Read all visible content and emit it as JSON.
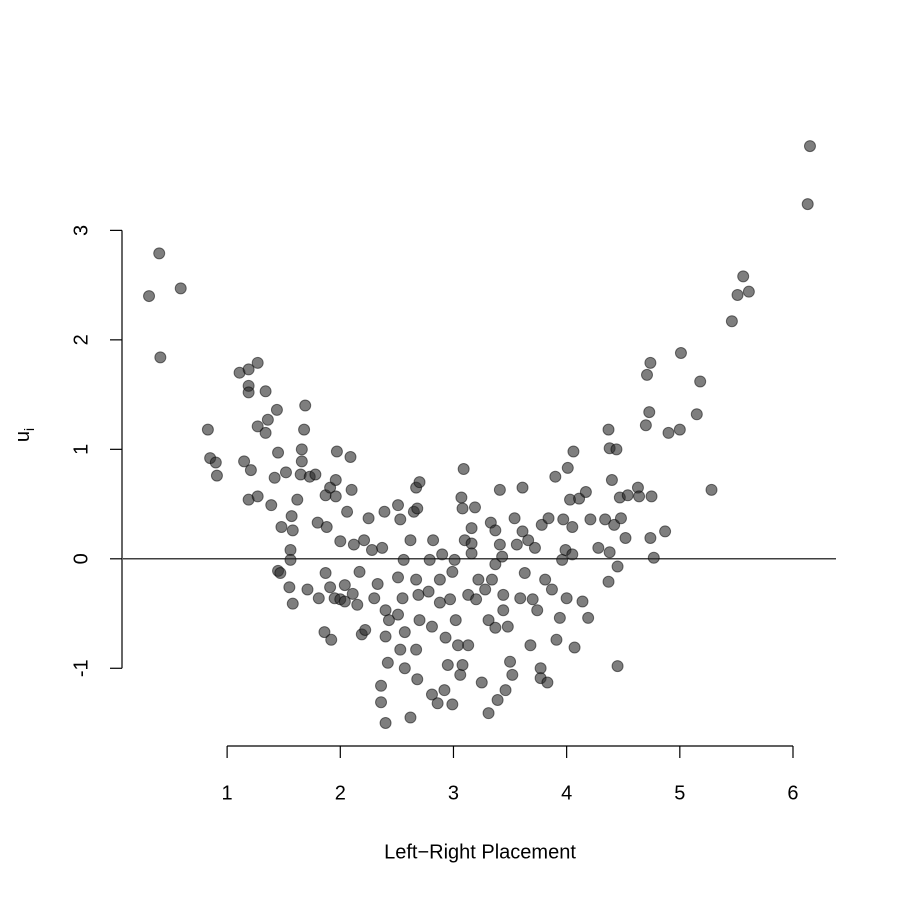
{
  "chart_data": {
    "type": "scatter",
    "xlabel": "Left−Right Placement",
    "ylabel": {
      "text": "u",
      "subscript": "i"
    },
    "xlim": [
      0.08,
      6.38
    ],
    "ylim": [
      -1.71,
      3.99
    ],
    "xticks": [
      1,
      2,
      3,
      4,
      5,
      6
    ],
    "yticks": [
      -1,
      0,
      1,
      2,
      3
    ],
    "hline": 0,
    "color": "rgba(40,40,40,0.6)",
    "x": [
      0.31,
      0.4,
      0.41,
      0.59,
      0.83,
      0.85,
      0.9,
      0.91,
      1.11,
      1.19,
      1.27,
      1.19,
      1.19,
      1.34,
      1.15,
      1.21,
      1.19,
      1.27,
      1.34,
      1.36,
      1.44,
      1.69,
      1.68,
      1.66,
      1.66,
      1.97,
      2.09,
      1.45,
      1.52,
      1.42,
      1.27,
      1.39,
      1.48,
      1.57,
      1.58,
      1.56,
      1.56,
      1.62,
      1.65,
      1.73,
      1.78,
      1.8,
      1.87,
      1.91,
      1.96,
      1.96,
      1.88,
      2.0,
      2.06,
      2.1,
      2.12,
      2.21,
      2.25,
      2.28,
      1.45,
      1.47,
      1.55,
      1.58,
      1.71,
      1.81,
      1.87,
      1.91,
      1.95,
      2.0,
      2.04,
      2.04,
      2.11,
      2.15,
      2.17,
      2.19,
      2.22,
      1.86,
      1.92,
      2.3,
      2.33,
      2.37,
      2.39,
      2.4,
      2.43,
      2.4,
      2.42,
      2.36,
      2.36,
      2.4,
      2.51,
      2.53,
      2.56,
      2.51,
      2.55,
      2.51,
      2.57,
      2.53,
      2.57,
      2.62,
      2.62,
      2.65,
      2.67,
      2.7,
      2.68,
      2.67,
      2.69,
      2.7,
      2.67,
      2.68,
      2.78,
      2.79,
      2.82,
      2.81,
      2.81,
      2.86,
      2.88,
      2.9,
      2.88,
      2.93,
      2.92,
      2.95,
      2.97,
      2.99,
      2.99,
      3.01,
      3.02,
      3.04,
      3.06,
      3.07,
      3.08,
      3.09,
      3.1,
      3.08,
      3.13,
      3.13,
      3.16,
      3.16,
      3.19,
      3.16,
      3.2,
      3.22,
      3.25,
      3.28,
      3.31,
      3.31,
      3.33,
      3.37,
      3.37,
      3.34,
      3.37,
      3.39,
      3.41,
      3.41,
      3.43,
      3.44,
      3.44,
      3.46,
      3.48,
      3.5,
      3.52,
      3.54,
      3.56,
      3.59,
      3.61,
      3.61,
      3.63,
      3.66,
      3.68,
      3.7,
      3.72,
      3.74,
      3.77,
      3.77,
      3.78,
      3.81,
      3.83,
      3.84,
      3.87,
      3.9,
      3.91,
      3.94,
      3.96,
      3.97,
      3.99,
      4.0,
      4.01,
      4.03,
      4.05,
      4.06,
      4.07,
      4.05,
      4.11,
      4.14,
      4.17,
      4.19,
      4.21,
      4.28,
      4.34,
      4.37,
      4.37,
      4.38,
      4.38,
      4.4,
      4.42,
      4.44,
      4.45,
      4.45,
      4.47,
      4.48,
      4.52,
      4.54,
      4.63,
      4.64,
      4.7,
      4.71,
      4.73,
      4.74,
      4.74,
      4.75,
      4.77,
      4.87,
      4.9,
      5.0,
      5.01,
      5.15,
      5.18,
      5.28,
      5.46,
      5.51,
      5.56,
      5.61,
      6.13,
      6.15
    ],
    "values": [
      2.4,
      2.79,
      1.84,
      2.47,
      1.18,
      0.92,
      0.88,
      0.76,
      1.7,
      1.73,
      1.79,
      1.58,
      1.52,
      1.53,
      0.89,
      0.81,
      0.54,
      1.21,
      1.15,
      1.27,
      1.36,
      1.4,
      1.18,
      1.0,
      0.89,
      0.98,
      0.93,
      0.97,
      0.79,
      0.74,
      0.57,
      0.49,
      0.29,
      0.39,
      0.26,
      0.08,
      -0.01,
      0.54,
      0.77,
      0.75,
      0.77,
      0.33,
      0.58,
      0.65,
      0.72,
      0.57,
      0.29,
      0.16,
      0.43,
      0.63,
      0.13,
      0.17,
      0.37,
      0.08,
      -0.11,
      -0.13,
      -0.26,
      -0.41,
      -0.28,
      -0.36,
      -0.13,
      -0.26,
      -0.36,
      -0.37,
      -0.39,
      -0.24,
      -0.32,
      -0.42,
      -0.12,
      -0.69,
      -0.65,
      -0.67,
      -0.74,
      -0.36,
      -0.23,
      0.1,
      0.43,
      -0.47,
      -0.56,
      -0.71,
      -0.95,
      -1.16,
      -1.31,
      -1.5,
      0.49,
      0.36,
      -0.01,
      -0.17,
      -0.36,
      -0.51,
      -0.67,
      -0.83,
      -1.0,
      -1.45,
      0.17,
      0.43,
      0.65,
      0.7,
      0.46,
      -0.19,
      -0.33,
      -0.56,
      -0.83,
      -1.1,
      -0.3,
      -0.01,
      0.17,
      -0.62,
      -1.24,
      -1.32,
      -0.19,
      0.04,
      -0.4,
      -0.72,
      -1.2,
      -0.97,
      -0.37,
      -0.12,
      -1.33,
      -0.01,
      -0.56,
      -0.79,
      -1.06,
      0.56,
      0.46,
      0.82,
      0.17,
      -0.97,
      -0.33,
      -0.79,
      0.28,
      0.14,
      0.47,
      0.05,
      -0.37,
      -0.19,
      -1.13,
      -0.28,
      -0.56,
      -1.41,
      0.33,
      0.26,
      -0.05,
      -0.19,
      -0.63,
      -1.29,
      0.63,
      0.13,
      0.02,
      -0.33,
      -0.47,
      -1.2,
      -0.62,
      -0.94,
      -1.06,
      0.37,
      0.13,
      -0.36,
      0.65,
      0.25,
      -0.13,
      0.17,
      -0.79,
      -0.37,
      0.1,
      -0.47,
      -1.0,
      -1.09,
      0.31,
      -0.19,
      -1.13,
      0.37,
      -0.28,
      0.75,
      -0.74,
      -0.54,
      -0.01,
      0.36,
      0.08,
      -0.36,
      0.83,
      0.54,
      0.29,
      0.98,
      -0.81,
      0.04,
      0.55,
      -0.39,
      0.61,
      -0.54,
      0.36,
      0.1,
      0.36,
      -0.21,
      1.18,
      1.01,
      0.06,
      0.72,
      0.31,
      1.0,
      -0.07,
      -0.98,
      0.56,
      0.37,
      0.19,
      0.58,
      0.65,
      0.57,
      1.22,
      1.68,
      1.34,
      1.79,
      0.19,
      0.57,
      0.01,
      0.25,
      1.15,
      1.18,
      1.88,
      1.32,
      1.62,
      0.63,
      2.17,
      2.41,
      2.58,
      2.44,
      3.24,
      3.77
    ]
  }
}
